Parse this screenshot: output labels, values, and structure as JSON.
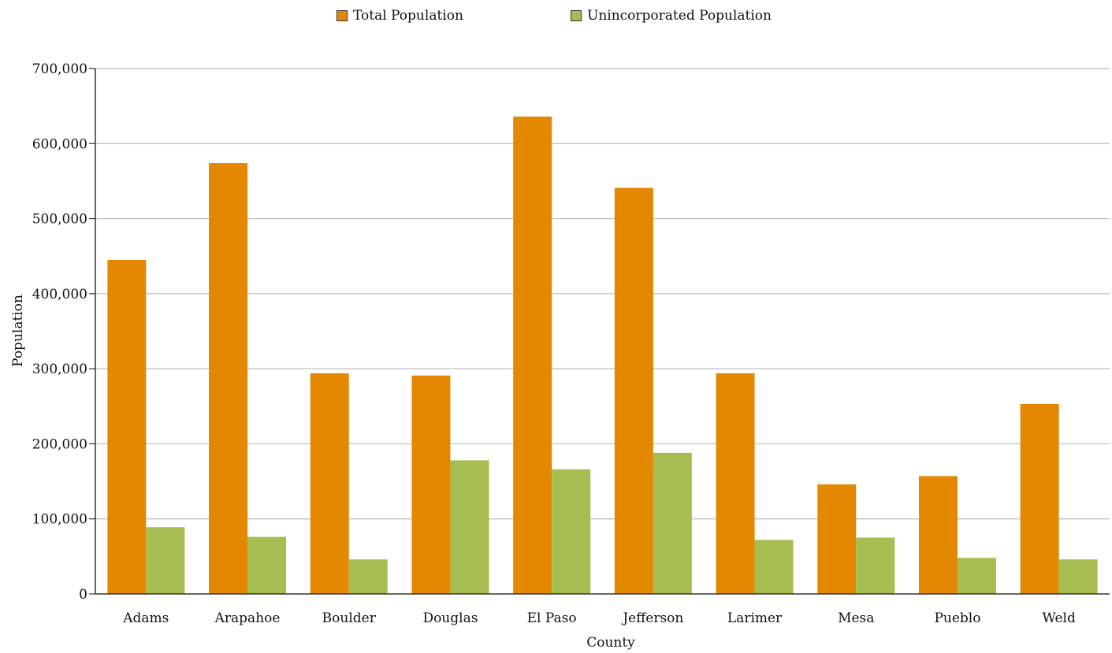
{
  "colors": {
    "total": "#E38800",
    "unincorporated": "#A6BD51",
    "grid": "#BEBEBE",
    "axis": "#333333"
  },
  "chart_data": {
    "type": "bar",
    "categories": [
      "Adams",
      "Arapahoe",
      "Boulder",
      "Douglas",
      "El Paso",
      "Jefferson",
      "Larimer",
      "Mesa",
      "Pueblo",
      "Weld"
    ],
    "series": [
      {
        "name": "Total Population",
        "values": [
          445000,
          574000,
          294000,
          291000,
          636000,
          541000,
          294000,
          146000,
          157000,
          253000
        ]
      },
      {
        "name": "Unincorporated Population",
        "values": [
          89000,
          76000,
          46000,
          178000,
          166000,
          188000,
          72000,
          75000,
          48000,
          46000
        ]
      }
    ],
    "xlabel": "County",
    "ylabel": "Population",
    "ylim": [
      0,
      700000
    ],
    "yticks": [
      0,
      100000,
      200000,
      300000,
      400000,
      500000,
      600000,
      700000
    ],
    "ytick_labels": [
      "0",
      "100,000",
      "200,000",
      "300,000",
      "400,000",
      "500,000",
      "600,000",
      "700,000"
    ],
    "grid": true,
    "legend_position": "top-center"
  }
}
